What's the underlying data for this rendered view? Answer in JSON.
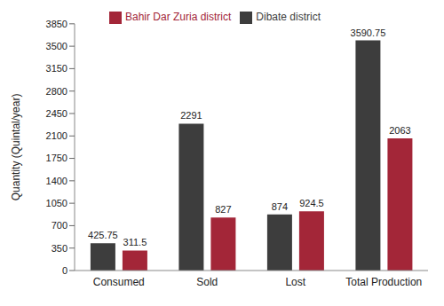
{
  "chart_data": {
    "type": "bar",
    "categories": [
      "Consumed",
      "Sold",
      "Lost",
      "Total Production"
    ],
    "series": [
      {
        "name": "Dibate district",
        "color": "#3d3d3d",
        "values": [
          425.75,
          2291,
          874,
          3590.75
        ]
      },
      {
        "name": "Bahir Dar Zuria district",
        "color": "#a32638",
        "values": [
          311.5,
          827,
          924.5,
          2063
        ]
      }
    ],
    "y_label": "Quantity (Quintal/year)",
    "ylim": [
      0,
      3850
    ],
    "yticks": [
      0,
      350,
      700,
      1050,
      1400,
      1750,
      2100,
      2450,
      2800,
      3150,
      3500,
      3850
    ],
    "data_labels": true,
    "legend": "top",
    "grid": false
  }
}
